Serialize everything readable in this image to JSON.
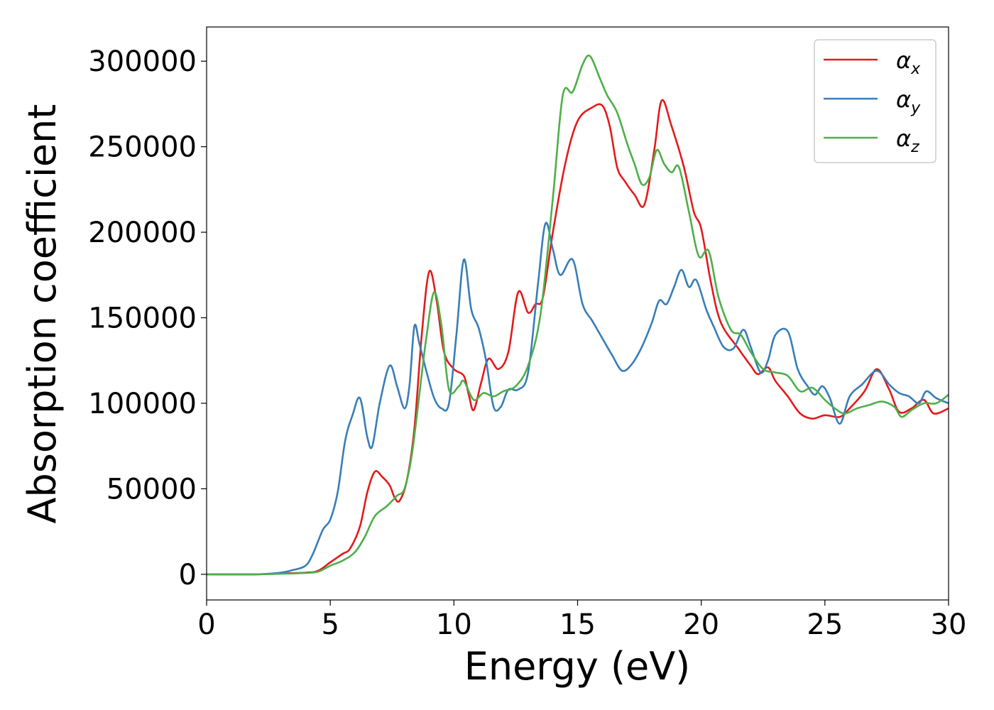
{
  "chart_data": {
    "type": "line",
    "title": "",
    "xlabel": "Energy (eV)",
    "ylabel": "Absorption coefficient",
    "xlim": [
      0,
      30
    ],
    "ylim": [
      -15000,
      320000
    ],
    "xticks": [
      0,
      5,
      10,
      15,
      20,
      25,
      30
    ],
    "yticks": [
      0,
      50000,
      100000,
      150000,
      200000,
      250000,
      300000
    ],
    "grid": false,
    "legend_position": "top-right",
    "series": [
      {
        "name": "αx",
        "symbol": "α",
        "subscript": "x",
        "color": "#e41a1c",
        "points": [
          [
            0,
            0
          ],
          [
            2,
            0
          ],
          [
            3,
            500
          ],
          [
            4,
            1000
          ],
          [
            4.5,
            2000
          ],
          [
            5,
            7000
          ],
          [
            5.5,
            12000
          ],
          [
            5.8,
            15000
          ],
          [
            6.2,
            28000
          ],
          [
            6.5,
            48000
          ],
          [
            6.8,
            60000
          ],
          [
            7.1,
            57000
          ],
          [
            7.4,
            52000
          ],
          [
            7.6,
            45000
          ],
          [
            7.8,
            43000
          ],
          [
            8.1,
            55000
          ],
          [
            8.4,
            85000
          ],
          [
            8.7,
            140000
          ],
          [
            9,
            177000
          ],
          [
            9.3,
            160000
          ],
          [
            9.6,
            130000
          ],
          [
            10,
            120000
          ],
          [
            10.4,
            116000
          ],
          [
            10.6,
            105000
          ],
          [
            10.8,
            96000
          ],
          [
            11.1,
            112000
          ],
          [
            11.4,
            126000
          ],
          [
            11.8,
            120000
          ],
          [
            12.2,
            130000
          ],
          [
            12.6,
            165000
          ],
          [
            13,
            153000
          ],
          [
            13.3,
            158000
          ],
          [
            13.6,
            162000
          ],
          [
            14,
            200000
          ],
          [
            14.5,
            240000
          ],
          [
            15,
            265000
          ],
          [
            15.6,
            273000
          ],
          [
            16,
            274000
          ],
          [
            16.3,
            262000
          ],
          [
            16.6,
            238000
          ],
          [
            16.9,
            230000
          ],
          [
            17.3,
            222000
          ],
          [
            17.7,
            216000
          ],
          [
            18.1,
            248000
          ],
          [
            18.4,
            277000
          ],
          [
            18.8,
            262000
          ],
          [
            19.3,
            238000
          ],
          [
            19.7,
            212000
          ],
          [
            20,
            202000
          ],
          [
            20.4,
            170000
          ],
          [
            20.8,
            147000
          ],
          [
            21.5,
            132000
          ],
          [
            22,
            122000
          ],
          [
            22.3,
            117000
          ],
          [
            22.7,
            121000
          ],
          [
            23,
            113000
          ],
          [
            23.5,
            104000
          ],
          [
            24,
            94000
          ],
          [
            24.5,
            91000
          ],
          [
            25,
            93000
          ],
          [
            25.6,
            92000
          ],
          [
            26,
            97000
          ],
          [
            26.6,
            107000
          ],
          [
            27.1,
            120000
          ],
          [
            27.6,
            108000
          ],
          [
            28,
            95000
          ],
          [
            28.5,
            97000
          ],
          [
            29,
            102000
          ],
          [
            29.4,
            94000
          ],
          [
            30,
            97000
          ]
        ]
      },
      {
        "name": "αy",
        "symbol": "α",
        "subscript": "y",
        "color": "#377eb8",
        "points": [
          [
            0,
            0
          ],
          [
            2,
            0
          ],
          [
            3,
            1000
          ],
          [
            3.5,
            2500
          ],
          [
            4,
            5000
          ],
          [
            4.3,
            12000
          ],
          [
            4.7,
            26000
          ],
          [
            5,
            32000
          ],
          [
            5.3,
            48000
          ],
          [
            5.6,
            78000
          ],
          [
            5.9,
            93000
          ],
          [
            6.2,
            103000
          ],
          [
            6.5,
            80000
          ],
          [
            6.7,
            75000
          ],
          [
            7,
            100000
          ],
          [
            7.4,
            122000
          ],
          [
            7.7,
            110000
          ],
          [
            8,
            97000
          ],
          [
            8.2,
            110000
          ],
          [
            8.4,
            145000
          ],
          [
            8.6,
            135000
          ],
          [
            8.9,
            118000
          ],
          [
            9.2,
            103000
          ],
          [
            9.5,
            97000
          ],
          [
            9.8,
            100000
          ],
          [
            10.1,
            140000
          ],
          [
            10.4,
            184000
          ],
          [
            10.7,
            155000
          ],
          [
            11,
            144000
          ],
          [
            11.3,
            125000
          ],
          [
            11.6,
            98000
          ],
          [
            11.9,
            98000
          ],
          [
            12.2,
            108000
          ],
          [
            12.6,
            108000
          ],
          [
            13,
            118000
          ],
          [
            13.4,
            170000
          ],
          [
            13.7,
            205000
          ],
          [
            14,
            190000
          ],
          [
            14.3,
            175000
          ],
          [
            14.8,
            184000
          ],
          [
            15.2,
            158000
          ],
          [
            15.6,
            148000
          ],
          [
            16,
            138000
          ],
          [
            16.4,
            128000
          ],
          [
            16.8,
            119000
          ],
          [
            17.2,
            123000
          ],
          [
            17.6,
            133000
          ],
          [
            18,
            147000
          ],
          [
            18.3,
            160000
          ],
          [
            18.6,
            158000
          ],
          [
            18.9,
            168000
          ],
          [
            19.2,
            178000
          ],
          [
            19.5,
            168000
          ],
          [
            19.8,
            172000
          ],
          [
            20.2,
            155000
          ],
          [
            20.5,
            145000
          ],
          [
            20.9,
            133000
          ],
          [
            21.3,
            132000
          ],
          [
            21.7,
            143000
          ],
          [
            22,
            133000
          ],
          [
            22.4,
            118000
          ],
          [
            22.7,
            125000
          ],
          [
            23,
            140000
          ],
          [
            23.5,
            142000
          ],
          [
            23.9,
            120000
          ],
          [
            24.3,
            110000
          ],
          [
            24.6,
            105000
          ],
          [
            24.9,
            110000
          ],
          [
            25.2,
            103000
          ],
          [
            25.6,
            88000
          ],
          [
            26,
            104000
          ],
          [
            26.5,
            111000
          ],
          [
            27.1,
            119000
          ],
          [
            27.6,
            111000
          ],
          [
            28,
            106000
          ],
          [
            28.4,
            104000
          ],
          [
            28.8,
            100000
          ],
          [
            29.1,
            107000
          ],
          [
            29.5,
            103000
          ],
          [
            30,
            100000
          ]
        ]
      },
      {
        "name": "αz",
        "symbol": "α",
        "subscript": "z",
        "color": "#4daf4a",
        "points": [
          [
            0,
            0
          ],
          [
            2,
            0
          ],
          [
            3,
            300
          ],
          [
            4,
            800
          ],
          [
            4.5,
            1500
          ],
          [
            5,
            5000
          ],
          [
            5.5,
            8000
          ],
          [
            6,
            13000
          ],
          [
            6.4,
            22000
          ],
          [
            6.8,
            34000
          ],
          [
            7.3,
            40000
          ],
          [
            7.7,
            46000
          ],
          [
            8,
            50000
          ],
          [
            8.3,
            70000
          ],
          [
            8.6,
            105000
          ],
          [
            8.9,
            140000
          ],
          [
            9.2,
            165000
          ],
          [
            9.5,
            145000
          ],
          [
            9.8,
            108000
          ],
          [
            10.2,
            110000
          ],
          [
            10.4,
            113000
          ],
          [
            10.8,
            102000
          ],
          [
            11.2,
            106000
          ],
          [
            11.6,
            104000
          ],
          [
            12,
            107000
          ],
          [
            12.5,
            110000
          ],
          [
            13,
            122000
          ],
          [
            13.5,
            152000
          ],
          [
            14,
            220000
          ],
          [
            14.4,
            280000
          ],
          [
            14.8,
            282000
          ],
          [
            15.2,
            298000
          ],
          [
            15.5,
            303000
          ],
          [
            15.9,
            290000
          ],
          [
            16.2,
            280000
          ],
          [
            16.6,
            270000
          ],
          [
            17,
            252000
          ],
          [
            17.3,
            240000
          ],
          [
            17.6,
            228000
          ],
          [
            17.9,
            232000
          ],
          [
            18.2,
            248000
          ],
          [
            18.5,
            240000
          ],
          [
            18.8,
            235000
          ],
          [
            19.1,
            238000
          ],
          [
            19.5,
            212000
          ],
          [
            19.9,
            186000
          ],
          [
            20.3,
            189000
          ],
          [
            20.7,
            162000
          ],
          [
            21.2,
            143000
          ],
          [
            21.6,
            140000
          ],
          [
            22,
            130000
          ],
          [
            22.5,
            120000
          ],
          [
            23,
            118000
          ],
          [
            23.5,
            116000
          ],
          [
            24,
            107000
          ],
          [
            24.5,
            109000
          ],
          [
            25,
            102000
          ],
          [
            25.4,
            97000
          ],
          [
            25.8,
            94000
          ],
          [
            26.3,
            97000
          ],
          [
            26.8,
            99000
          ],
          [
            27.3,
            101000
          ],
          [
            27.8,
            98000
          ],
          [
            28.1,
            92000
          ],
          [
            28.5,
            96000
          ],
          [
            29,
            100000
          ],
          [
            29.5,
            100000
          ],
          [
            30,
            105000
          ]
        ]
      }
    ]
  }
}
